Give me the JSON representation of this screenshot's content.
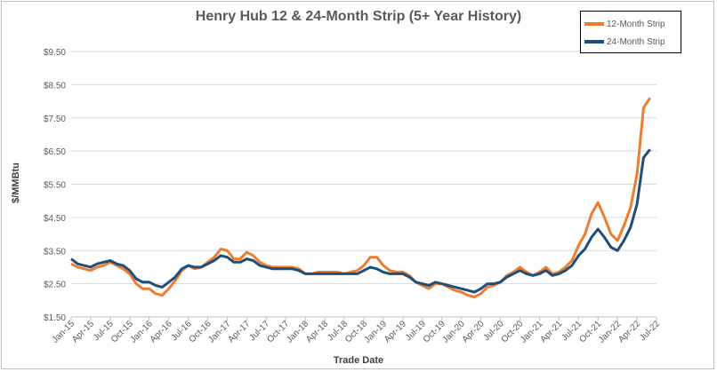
{
  "chart_data": {
    "type": "line",
    "title": "Henry Hub 12 & 24-Month Strip (5+ Year History)",
    "xlabel": "Trade Date",
    "ylabel": "$/MMBtu",
    "ylim": [
      1.5,
      9.5
    ],
    "yticks": [
      "$1.50",
      "$2.50",
      "$3.50",
      "$4.50",
      "$5.50",
      "$6.50",
      "$7.50",
      "$8.50",
      "$9.50"
    ],
    "ytick_values": [
      1.5,
      2.5,
      3.5,
      4.5,
      5.5,
      6.5,
      7.5,
      8.5,
      9.5
    ],
    "xticks": [
      "Jan-15",
      "Apr-15",
      "Jul-15",
      "Oct-15",
      "Jan-16",
      "Apr-16",
      "Jul-16",
      "Oct-16",
      "Jan-17",
      "Apr-17",
      "Jul-17",
      "Oct-17",
      "Jan-18",
      "Apr-18",
      "Jul-18",
      "Oct-18",
      "Jan-19",
      "Apr-19",
      "Jul-19",
      "Oct-19",
      "Jan-20",
      "Apr-20",
      "Jul-20",
      "Oct-20",
      "Jan-21",
      "Apr-21",
      "Jul-21",
      "Oct-21",
      "Jan-22",
      "Apr-22",
      "Jul-22"
    ],
    "grid": true,
    "legend": "top-right",
    "x": [
      "2015-01",
      "2015-02",
      "2015-03",
      "2015-04",
      "2015-05",
      "2015-06",
      "2015-07",
      "2015-08",
      "2015-09",
      "2015-10",
      "2015-11",
      "2015-12",
      "2016-01",
      "2016-02",
      "2016-03",
      "2016-04",
      "2016-05",
      "2016-06",
      "2016-07",
      "2016-08",
      "2016-09",
      "2016-10",
      "2016-11",
      "2016-12",
      "2017-01",
      "2017-02",
      "2017-03",
      "2017-04",
      "2017-05",
      "2017-06",
      "2017-07",
      "2017-08",
      "2017-09",
      "2017-10",
      "2017-11",
      "2017-12",
      "2018-01",
      "2018-02",
      "2018-03",
      "2018-04",
      "2018-05",
      "2018-06",
      "2018-07",
      "2018-08",
      "2018-09",
      "2018-10",
      "2018-11",
      "2018-12",
      "2019-01",
      "2019-02",
      "2019-03",
      "2019-04",
      "2019-05",
      "2019-06",
      "2019-07",
      "2019-08",
      "2019-09",
      "2019-10",
      "2019-11",
      "2019-12",
      "2020-01",
      "2020-02",
      "2020-03",
      "2020-04",
      "2020-05",
      "2020-06",
      "2020-07",
      "2020-08",
      "2020-09",
      "2020-10",
      "2020-11",
      "2020-12",
      "2021-01",
      "2021-02",
      "2021-03",
      "2021-04",
      "2021-05",
      "2021-06",
      "2021-07",
      "2021-08",
      "2021-09",
      "2021-10",
      "2021-11",
      "2021-12",
      "2022-01",
      "2022-02",
      "2022-03",
      "2022-04",
      "2022-05",
      "2022-06"
    ],
    "series": [
      {
        "name": "12-Month Strip",
        "color": "#ED7D31",
        "values": [
          3.1,
          3.0,
          2.95,
          2.9,
          3.0,
          3.05,
          3.15,
          3.05,
          2.95,
          2.8,
          2.5,
          2.35,
          2.35,
          2.2,
          2.15,
          2.35,
          2.6,
          2.9,
          3.05,
          2.95,
          3.0,
          3.15,
          3.3,
          3.55,
          3.5,
          3.25,
          3.25,
          3.45,
          3.35,
          3.15,
          3.05,
          3.0,
          3.0,
          3.0,
          3.0,
          2.95,
          2.8,
          2.8,
          2.85,
          2.85,
          2.85,
          2.85,
          2.8,
          2.85,
          2.9,
          3.05,
          3.3,
          3.3,
          3.05,
          2.9,
          2.85,
          2.85,
          2.75,
          2.55,
          2.45,
          2.35,
          2.5,
          2.5,
          2.4,
          2.3,
          2.25,
          2.15,
          2.1,
          2.2,
          2.4,
          2.45,
          2.55,
          2.75,
          2.85,
          3.0,
          2.85,
          2.75,
          2.85,
          3.0,
          2.8,
          2.85,
          3.0,
          3.2,
          3.65,
          4.0,
          4.6,
          4.95,
          4.5,
          4.0,
          3.8,
          4.25,
          4.8,
          5.8,
          7.8,
          8.1
        ]
      },
      {
        "name": "24-Month Strip",
        "color": "#1F4E79",
        "values": [
          3.25,
          3.1,
          3.05,
          3.0,
          3.1,
          3.15,
          3.2,
          3.1,
          3.05,
          2.9,
          2.65,
          2.55,
          2.55,
          2.45,
          2.4,
          2.55,
          2.7,
          2.95,
          3.05,
          3.0,
          3.0,
          3.1,
          3.2,
          3.35,
          3.3,
          3.15,
          3.15,
          3.25,
          3.2,
          3.05,
          3.0,
          2.95,
          2.95,
          2.95,
          2.95,
          2.9,
          2.8,
          2.8,
          2.8,
          2.8,
          2.8,
          2.8,
          2.8,
          2.8,
          2.8,
          2.9,
          3.0,
          2.95,
          2.85,
          2.8,
          2.8,
          2.8,
          2.7,
          2.55,
          2.5,
          2.45,
          2.55,
          2.5,
          2.45,
          2.4,
          2.35,
          2.3,
          2.25,
          2.35,
          2.5,
          2.5,
          2.55,
          2.7,
          2.8,
          2.9,
          2.8,
          2.75,
          2.8,
          2.9,
          2.75,
          2.8,
          2.9,
          3.05,
          3.35,
          3.55,
          3.9,
          4.15,
          3.9,
          3.6,
          3.5,
          3.8,
          4.2,
          4.9,
          6.3,
          6.55
        ]
      }
    ]
  }
}
